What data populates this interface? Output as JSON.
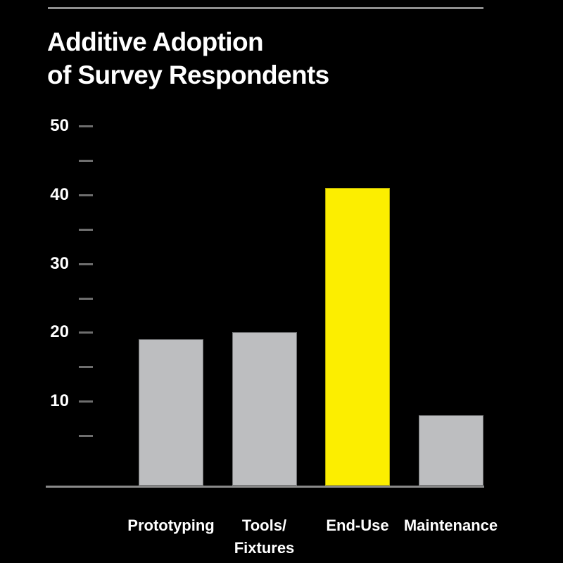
{
  "page": {
    "background": "#000000"
  },
  "header": {
    "title_lines": [
      "Additive Adoption",
      "of Survey Respondents"
    ]
  },
  "colors": {
    "background": "#000000",
    "text": "#ffffff",
    "top_rule": "#8f8f8f",
    "axis_line": "#8a8a8a",
    "tick_mark": "#6e6e6e",
    "bar_default": "#bdbec0",
    "bar_default_border": "#717274",
    "bar_highlight": "#fcee00",
    "bar_highlight_border": "#b1a800"
  },
  "y_axis": {
    "labels": [
      "50",
      "40",
      "30",
      "20",
      "10"
    ],
    "max": 50,
    "major_step": 10,
    "minor_step": 5
  },
  "chart_data": {
    "type": "bar",
    "title": "Additive Adoption of Survey Respondents",
    "categories": [
      "Prototyping",
      "Tools/Fixtures",
      "End-Use",
      "Maintenance"
    ],
    "category_label_lines": [
      [
        "Prototyping"
      ],
      [
        "Tools/",
        "Fixtures"
      ],
      [
        "End-Use"
      ],
      [
        "Maintenance"
      ]
    ],
    "values": [
      19,
      20,
      41,
      8
    ],
    "bar_colors": [
      "#bdbec0",
      "#bdbec0",
      "#fcee00",
      "#bdbec0"
    ],
    "highlighted_category": "End-Use",
    "ylim": [
      0,
      50
    ],
    "yticks_labeled": [
      50,
      40,
      30,
      20,
      10
    ],
    "yticks_minor": [
      45,
      35,
      25,
      15,
      5
    ],
    "grid": false,
    "legend": null,
    "xlabel": "",
    "ylabel": ""
  }
}
